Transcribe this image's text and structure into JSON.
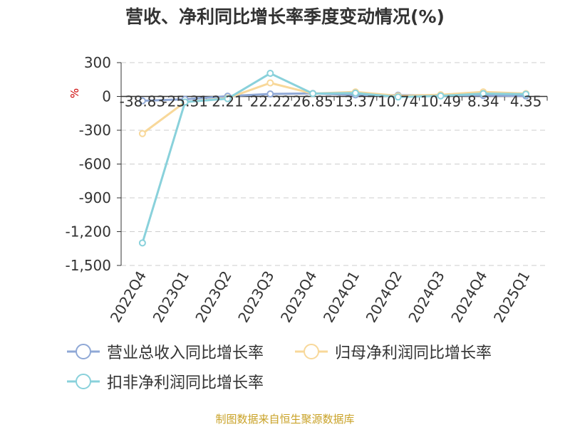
{
  "title": "营收、净利同比增长率季度变动情况(%)",
  "source": "制图数据来自恒生聚源数据库",
  "colors": {
    "revenue": "#8fa8d6",
    "net_profit": "#f8d89a",
    "net_profit_deducted": "#89d1db",
    "grid": "#cccccc",
    "axis": "#333333",
    "unit": "#cc0000",
    "source": "#c9a227"
  },
  "chart_data": {
    "type": "line",
    "title": "营收、净利同比增长率季度变动情况(%)",
    "ylabel": "%",
    "ylim": [
      -1500,
      300
    ],
    "yticks": [
      300,
      0,
      -300,
      -600,
      -900,
      -1200,
      -1500
    ],
    "ytick_labels": [
      "300",
      "0",
      "-300",
      "-600",
      "-900",
      "-1,200",
      "-1,500"
    ],
    "grid": true,
    "legend_position": "bottom",
    "categories": [
      "2022Q4",
      "2023Q1",
      "2023Q2",
      "2023Q3",
      "2023Q4",
      "2024Q1",
      "2024Q2",
      "2024Q3",
      "2024Q4",
      "2025Q1"
    ],
    "series": [
      {
        "name": "营业总收入同比增长率",
        "color_key": "revenue",
        "values": [
          -38.83,
          -25.31,
          2.21,
          22.22,
          26.85,
          13.37,
          10.74,
          10.49,
          8.34,
          4.35
        ],
        "labels": [
          "-38.83",
          "-25.31",
          "2.21",
          "22.22",
          "26.85",
          "13.37",
          "10.74",
          "10.49",
          "8.34",
          "4.35"
        ]
      },
      {
        "name": "归母净利润同比增长率",
        "color_key": "net_profit",
        "values": [
          -330,
          -50,
          -15,
          120,
          25,
          40,
          5,
          15,
          40,
          25
        ]
      },
      {
        "name": "扣非净利润同比增长率",
        "color_key": "net_profit_deducted",
        "values": [
          -1300,
          -50,
          -20,
          205,
          25,
          30,
          -5,
          5,
          25,
          20
        ]
      }
    ]
  }
}
